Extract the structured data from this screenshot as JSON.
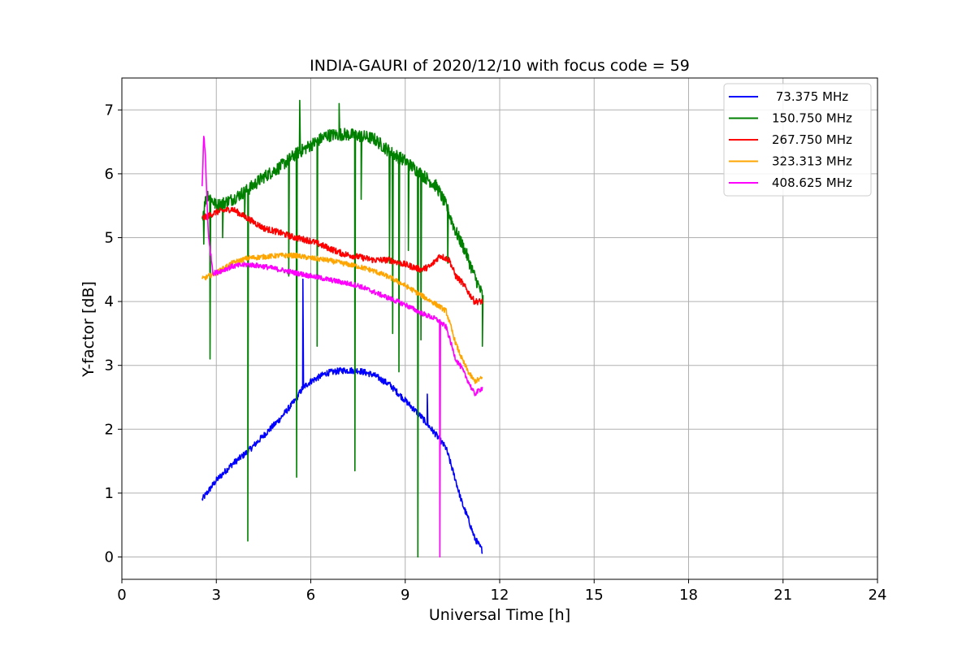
{
  "chart_data": {
    "type": "line",
    "title": "INDIA-GAURI of 2020/12/10 with focus code = 59",
    "xlabel": "Universal Time [h]",
    "ylabel": "Y-factor [dB]",
    "xlim": [
      0,
      24
    ],
    "ylim": [
      -0.35,
      7.5
    ],
    "xticks": [
      0,
      3,
      6,
      9,
      12,
      15,
      18,
      21,
      24
    ],
    "yticks": [
      0,
      1,
      2,
      3,
      4,
      5,
      6,
      7
    ],
    "xtick_labels": [
      "0",
      "3",
      "6",
      "9",
      "12",
      "15",
      "18",
      "21",
      "24"
    ],
    "ytick_labels": [
      "0",
      "1",
      "2",
      "3",
      "4",
      "5",
      "6",
      "7"
    ],
    "grid": true,
    "legend_position": "top-right",
    "series": [
      {
        "name": " 73.375 MHz",
        "color": "#0000ff",
        "noise": 0.05,
        "x": [
          2.55,
          3.0,
          3.5,
          4.0,
          4.5,
          5.0,
          5.5,
          5.75,
          6.0,
          6.5,
          7.0,
          7.5,
          8.0,
          8.5,
          9.0,
          9.5,
          10.0,
          10.3,
          10.6,
          10.8,
          11.0,
          11.2,
          11.45
        ],
        "y": [
          0.9,
          1.2,
          1.45,
          1.65,
          1.9,
          2.15,
          2.45,
          2.65,
          2.75,
          2.88,
          2.92,
          2.92,
          2.85,
          2.7,
          2.45,
          2.2,
          1.9,
          1.7,
          1.2,
          0.85,
          0.6,
          0.3,
          0.1
        ],
        "spikes": [
          {
            "x": 5.75,
            "y": 4.35
          },
          {
            "x": 9.7,
            "y": 2.55
          }
        ]
      },
      {
        "name": "150.750 MHz",
        "color": "#008000",
        "noise": 0.1,
        "x": [
          2.55,
          2.7,
          3.0,
          3.5,
          4.0,
          4.5,
          5.0,
          5.5,
          6.0,
          6.5,
          7.0,
          7.5,
          8.0,
          8.5,
          9.0,
          9.5,
          10.0,
          10.3,
          10.6,
          10.9,
          11.2,
          11.45
        ],
        "y": [
          5.3,
          5.7,
          5.5,
          5.6,
          5.75,
          5.95,
          6.1,
          6.3,
          6.45,
          6.6,
          6.62,
          6.6,
          6.55,
          6.35,
          6.2,
          6.0,
          5.8,
          5.5,
          5.1,
          4.8,
          4.4,
          4.1
        ],
        "spikes": [
          {
            "x": 2.6,
            "y": 4.9
          },
          {
            "x": 2.8,
            "y": 3.1
          },
          {
            "x": 3.2,
            "y": 5.0
          },
          {
            "x": 3.9,
            "y": 5.3
          },
          {
            "x": 4.0,
            "y": 0.25
          },
          {
            "x": 5.3,
            "y": 4.4
          },
          {
            "x": 5.55,
            "y": 1.25
          },
          {
            "x": 5.65,
            "y": 7.15
          },
          {
            "x": 6.2,
            "y": 3.3
          },
          {
            "x": 6.9,
            "y": 7.1
          },
          {
            "x": 7.4,
            "y": 1.35
          },
          {
            "x": 7.6,
            "y": 5.6
          },
          {
            "x": 8.5,
            "y": 4.6
          },
          {
            "x": 8.6,
            "y": 3.5
          },
          {
            "x": 8.8,
            "y": 2.9
          },
          {
            "x": 9.1,
            "y": 4.8
          },
          {
            "x": 9.4,
            "y": 0.0
          },
          {
            "x": 9.5,
            "y": 3.4
          },
          {
            "x": 10.35,
            "y": 4.6
          },
          {
            "x": 11.45,
            "y": 3.3
          }
        ]
      },
      {
        "name": "267.750 MHz",
        "color": "#ff0000",
        "noise": 0.05,
        "x": [
          2.55,
          3.0,
          3.5,
          4.0,
          4.5,
          5.0,
          5.5,
          6.0,
          6.5,
          7.0,
          7.5,
          8.0,
          8.5,
          9.0,
          9.5,
          9.8,
          10.1,
          10.4,
          10.6,
          10.8,
          11.0,
          11.2,
          11.45
        ],
        "y": [
          5.3,
          5.4,
          5.45,
          5.3,
          5.15,
          5.08,
          5.0,
          4.95,
          4.85,
          4.75,
          4.7,
          4.65,
          4.65,
          4.58,
          4.5,
          4.55,
          4.72,
          4.65,
          4.4,
          4.3,
          4.15,
          4.0,
          4.0
        ],
        "spikes": []
      },
      {
        "name": "323.313 MHz",
        "color": "#ffa500",
        "noise": 0.04,
        "x": [
          2.55,
          3.0,
          3.5,
          4.0,
          4.5,
          5.0,
          5.5,
          6.0,
          6.5,
          7.0,
          7.5,
          8.0,
          8.5,
          9.0,
          9.5,
          10.0,
          10.3,
          10.6,
          10.8,
          11.0,
          11.2,
          11.45
        ],
        "y": [
          4.35,
          4.45,
          4.6,
          4.68,
          4.7,
          4.72,
          4.72,
          4.68,
          4.65,
          4.6,
          4.55,
          4.48,
          4.38,
          4.25,
          4.1,
          3.95,
          3.85,
          3.35,
          3.1,
          2.9,
          2.75,
          2.8
        ],
        "spikes": []
      },
      {
        "name": "408.625 MHz",
        "color": "#ff00ff",
        "noise": 0.04,
        "x": [
          2.55,
          2.6,
          2.65,
          2.75,
          2.9,
          3.0,
          3.5,
          4.0,
          4.5,
          5.0,
          5.5,
          6.0,
          6.5,
          7.0,
          7.5,
          8.0,
          8.5,
          9.0,
          9.5,
          10.0,
          10.3,
          10.6,
          10.8,
          11.0,
          11.2,
          11.45
        ],
        "y": [
          5.8,
          6.6,
          6.3,
          5.0,
          4.45,
          4.45,
          4.55,
          4.58,
          4.55,
          4.5,
          4.45,
          4.4,
          4.35,
          4.3,
          4.25,
          4.15,
          4.05,
          3.95,
          3.82,
          3.72,
          3.6,
          3.1,
          2.95,
          2.75,
          2.55,
          2.65
        ],
        "spikes": [
          {
            "x": 10.1,
            "y": 0.0
          }
        ]
      }
    ]
  }
}
